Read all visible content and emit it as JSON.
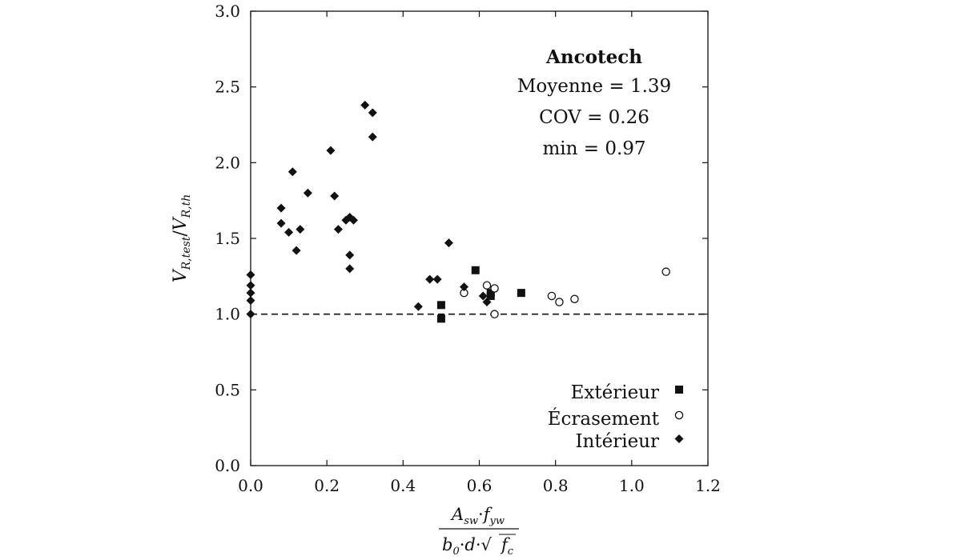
{
  "chart_data": {
    "type": "scatter",
    "title": "",
    "xlabel": "A_sw·f_yw / (b_0·d·√f_c)",
    "ylabel": "V_R,test / V_R,th",
    "xlim": [
      0.0,
      1.2
    ],
    "ylim": [
      0.0,
      3.0
    ],
    "x_ticks": [
      "0.0",
      "0.2",
      "0.4",
      "0.6",
      "0.8",
      "1.0",
      "1.2"
    ],
    "y_ticks": [
      "0.0",
      "0.5",
      "1.0",
      "1.5",
      "2.0",
      "2.5",
      "3.0"
    ],
    "grid": false,
    "legend_position": "bottom-right",
    "reference_line": {
      "y": 1.0,
      "style": "dashed"
    },
    "annotation": {
      "title": "Ancotech",
      "lines": [
        "Moyenne = 1.39",
        "COV = 0.26",
        "min = 0.97"
      ]
    },
    "series": [
      {
        "name": "Extérieur",
        "marker": "square",
        "points": [
          [
            0.5,
            1.06
          ],
          [
            0.5,
            0.97
          ],
          [
            0.59,
            1.29
          ],
          [
            0.63,
            1.14
          ],
          [
            0.63,
            1.12
          ],
          [
            0.71,
            1.14
          ]
        ]
      },
      {
        "name": "Écrasement",
        "marker": "circle-open",
        "points": [
          [
            0.56,
            1.14
          ],
          [
            0.62,
            1.19
          ],
          [
            0.64,
            1.17
          ],
          [
            0.64,
            1.0
          ],
          [
            0.79,
            1.12
          ],
          [
            0.81,
            1.08
          ],
          [
            0.85,
            1.1
          ],
          [
            1.09,
            1.28
          ]
        ]
      },
      {
        "name": "Intérieur",
        "marker": "diamond",
        "points": [
          [
            0.0,
            1.26
          ],
          [
            0.0,
            1.19
          ],
          [
            0.0,
            1.14
          ],
          [
            0.0,
            1.09
          ],
          [
            0.0,
            1.0
          ],
          [
            0.08,
            1.7
          ],
          [
            0.08,
            1.6
          ],
          [
            0.1,
            1.54
          ],
          [
            0.11,
            1.94
          ],
          [
            0.12,
            1.42
          ],
          [
            0.13,
            1.56
          ],
          [
            0.15,
            1.8
          ],
          [
            0.21,
            2.08
          ],
          [
            0.22,
            1.78
          ],
          [
            0.23,
            1.56
          ],
          [
            0.25,
            1.62
          ],
          [
            0.26,
            1.64
          ],
          [
            0.26,
            1.39
          ],
          [
            0.26,
            1.3
          ],
          [
            0.27,
            1.62
          ],
          [
            0.3,
            2.38
          ],
          [
            0.32,
            2.33
          ],
          [
            0.32,
            2.17
          ],
          [
            0.44,
            1.05
          ],
          [
            0.47,
            1.23
          ],
          [
            0.49,
            1.23
          ],
          [
            0.52,
            1.47
          ],
          [
            0.56,
            1.18
          ],
          [
            0.61,
            1.12
          ],
          [
            0.62,
            1.08
          ]
        ]
      }
    ]
  }
}
